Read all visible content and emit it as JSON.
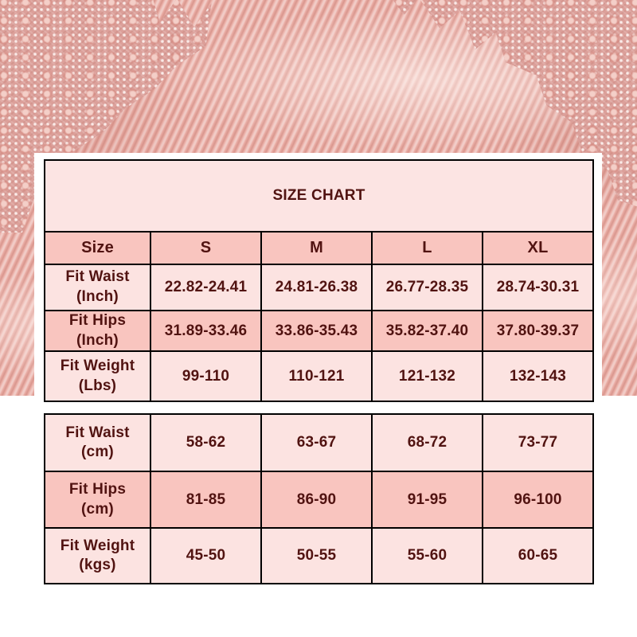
{
  "title": "SIZE CHART",
  "colors": {
    "text_maroon": "#511311",
    "title_bg": "#fce4e3",
    "header_bg": "#f9c5bf",
    "row_light_bg": "#fce3e1",
    "row_dark_bg": "#f9c5bf",
    "table_border": "#000000",
    "panel_bg": "#ffffff",
    "fabric_pink": "#e9aca4",
    "lace_pink": "#dca09a"
  },
  "size_chart": {
    "header": [
      "Size",
      "S",
      "M",
      "L",
      "XL"
    ],
    "imperial": {
      "rows": [
        {
          "label_line1": "Fit Waist",
          "label_line2": "(Inch)",
          "values": [
            "22.82-24.41",
            "24.81-26.38",
            "26.77-28.35",
            "28.74-30.31"
          ]
        },
        {
          "label_line1": "Fit Hips",
          "label_line2": "(Inch)",
          "values": [
            "31.89-33.46",
            "33.86-35.43",
            "35.82-37.40",
            "37.80-39.37"
          ]
        },
        {
          "label_line1": "Fit Weight",
          "label_line2": "(Lbs)",
          "values": [
            "99-110",
            "110-121",
            "121-132",
            "132-143"
          ]
        }
      ]
    },
    "metric": {
      "rows": [
        {
          "label_line1": "Fit Waist",
          "label_line2": "(cm)",
          "values": [
            "58-62",
            "63-67",
            "68-72",
            "73-77"
          ]
        },
        {
          "label_line1": "Fit Hips",
          "label_line2": "(cm)",
          "values": [
            "81-85",
            "86-90",
            "91-95",
            "96-100"
          ]
        },
        {
          "label_line1": "Fit Weight",
          "label_line2": "(kgs)",
          "values": [
            "45-50",
            "50-55",
            "55-60",
            "60-65"
          ]
        }
      ]
    }
  },
  "chart_data": {
    "type": "table",
    "title": "SIZE CHART",
    "columns": [
      "Size",
      "S",
      "M",
      "L",
      "XL"
    ],
    "rows": [
      [
        "Fit Waist (Inch)",
        "22.82-24.41",
        "24.81-26.38",
        "26.77-28.35",
        "28.74-30.31"
      ],
      [
        "Fit Hips (Inch)",
        "31.89-33.46",
        "33.86-35.43",
        "35.82-37.40",
        "37.80-39.37"
      ],
      [
        "Fit Weight (Lbs)",
        "99-110",
        "110-121",
        "121-132",
        "132-143"
      ],
      [
        "Fit Waist (cm)",
        "58-62",
        "63-67",
        "68-72",
        "73-77"
      ],
      [
        "Fit Hips (cm)",
        "81-85",
        "86-90",
        "91-95",
        "96-100"
      ],
      [
        "Fit Weight (kgs)",
        "45-50",
        "50-55",
        "55-60",
        "60-65"
      ]
    ]
  }
}
